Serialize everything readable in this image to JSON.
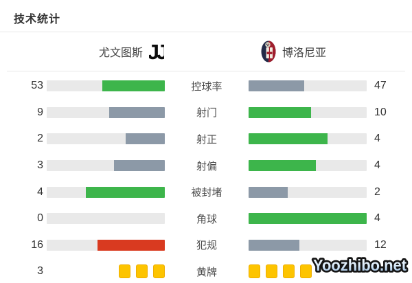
{
  "title": "技术统计",
  "teams": {
    "home": {
      "name": "尤文图斯",
      "logo": "juventus-logo"
    },
    "away": {
      "name": "博洛尼亚",
      "logo": "bologna-logo"
    }
  },
  "colors": {
    "green": "#3db54b",
    "slate": "#8c99a7",
    "red": "#d93a20",
    "yellow": "#fdc400",
    "track": "#e9e9e9",
    "divider": "#e7e7e7"
  },
  "stats": [
    {
      "label": "控球率",
      "home": 53,
      "away": 47,
      "home_color": "green",
      "away_color": "slate",
      "type": "bar"
    },
    {
      "label": "射门",
      "home": 9,
      "away": 10,
      "home_color": "slate",
      "away_color": "green",
      "type": "bar"
    },
    {
      "label": "射正",
      "home": 2,
      "away": 4,
      "home_color": "slate",
      "away_color": "green",
      "type": "bar"
    },
    {
      "label": "射偏",
      "home": 3,
      "away": 4,
      "home_color": "slate",
      "away_color": "green",
      "type": "bar"
    },
    {
      "label": "被封堵",
      "home": 4,
      "away": 2,
      "home_color": "green",
      "away_color": "slate",
      "type": "bar"
    },
    {
      "label": "角球",
      "home": 0,
      "away": 4,
      "home_color": "green",
      "away_color": "green",
      "type": "bar"
    },
    {
      "label": "犯规",
      "home": 16,
      "away": 12,
      "home_color": "red",
      "away_color": "slate",
      "type": "bar"
    },
    {
      "label": "黄牌",
      "home": 3,
      "away": 4,
      "home_color": "yellow",
      "away_color": "yellow",
      "type": "cards",
      "away_value_hidden": true
    }
  ],
  "watermark": "Yoozhibo.net",
  "chart_data": {
    "type": "bar",
    "orientation": "horizontal-paired",
    "title": "技术统计",
    "categories": [
      "控球率",
      "射门",
      "射正",
      "射偏",
      "被封堵",
      "角球",
      "犯规",
      "黄牌"
    ],
    "series": [
      {
        "name": "尤文图斯",
        "values": [
          53,
          9,
          2,
          3,
          4,
          0,
          16,
          3
        ]
      },
      {
        "name": "博洛尼亚",
        "values": [
          47,
          10,
          4,
          4,
          2,
          4,
          12,
          4
        ]
      }
    ],
    "value_scale": "each bar filled proportional to value/(home+away)",
    "legend_position": "top",
    "grid": false
  }
}
